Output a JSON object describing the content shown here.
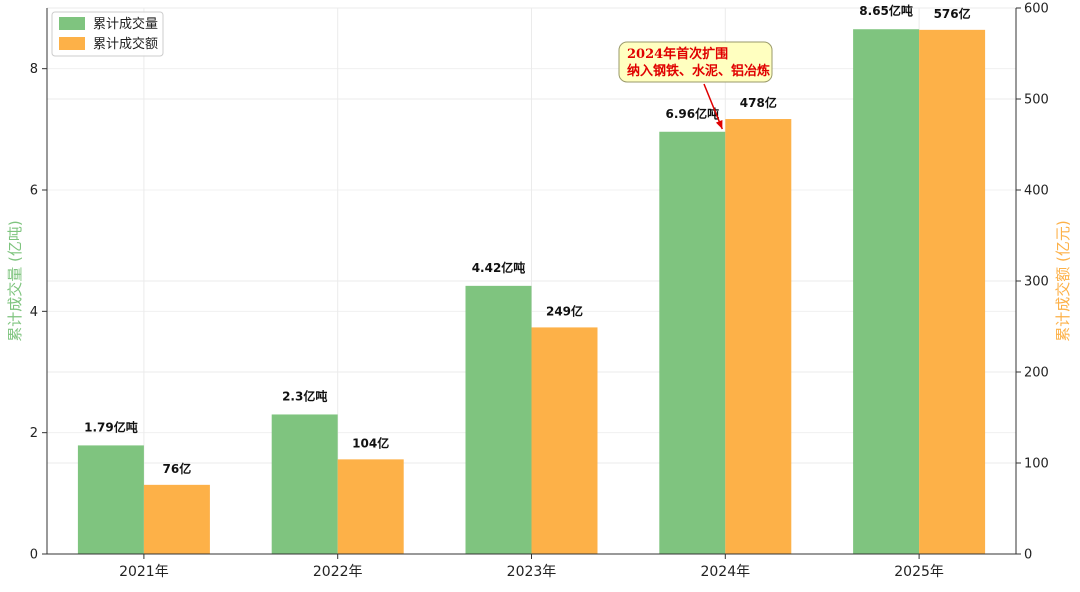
{
  "chart_data": {
    "type": "bar",
    "categories": [
      "2021年",
      "2022年",
      "2023年",
      "2024年",
      "2025年"
    ],
    "series": [
      {
        "name": "累计成交量",
        "axis": "left",
        "color": "#7fc47f",
        "values": [
          1.79,
          2.3,
          4.42,
          6.96,
          8.65
        ],
        "labels": [
          "1.79亿吨",
          "2.3亿吨",
          "4.42亿吨",
          "6.96亿吨",
          "8.65亿吨"
        ]
      },
      {
        "name": "累计成交额",
        "axis": "right",
        "color": "#fdb148",
        "values": [
          76,
          104,
          249,
          478,
          576
        ],
        "labels": [
          "76亿",
          "104亿",
          "249亿",
          "478亿",
          "576亿"
        ]
      }
    ],
    "y_left": {
      "label": "累计成交量 (亿吨)",
      "color": "#7fc47f",
      "range": [
        0,
        9
      ],
      "ticks": [
        0,
        2,
        4,
        6,
        8
      ]
    },
    "y_right": {
      "label": "累计成交额 (亿元)",
      "color": "#fdb148",
      "range": [
        0,
        600
      ],
      "ticks": [
        0,
        100,
        200,
        300,
        400,
        500,
        600
      ]
    },
    "grid": true,
    "legend_position": "top-left",
    "annotation": {
      "lines": [
        "2024年首次扩围",
        "纳入钢铁、水泥、铝冶炼"
      ],
      "target_category": "2024年",
      "bg_color": "#ffffc0",
      "text_color": "#e00000"
    }
  }
}
